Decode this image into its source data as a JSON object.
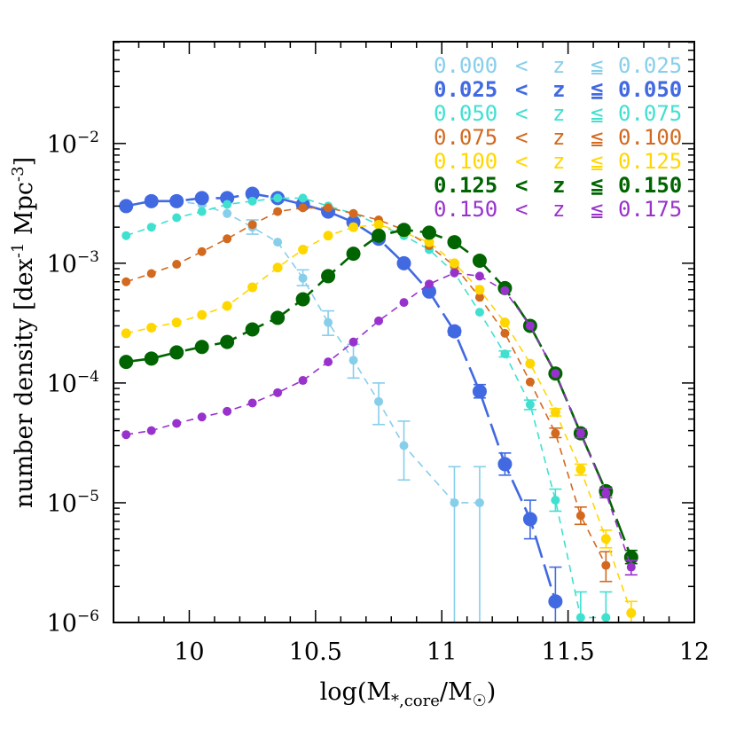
{
  "chart_data": {
    "type": "line",
    "title": "",
    "xlabel": "log(M",
    "xlabel_sub": "*,core",
    "xlabel_tail": "/M",
    "xlabel_sun": "☉",
    "xlabel_close": ")",
    "ylabel": "number density [dex",
    "ylabel_sup1": "-1",
    "ylabel_mid": " Mpc",
    "ylabel_sup2": "-3",
    "ylabel_close": "]",
    "xlim": [
      9.7,
      12.0
    ],
    "ylim_log10": [
      -6,
      -1.15
    ],
    "yscale": "log",
    "x_ticks": [
      {
        "value": 10,
        "label": "10"
      },
      {
        "value": 10.5,
        "label": "10.5"
      },
      {
        "value": 11,
        "label": "11"
      },
      {
        "value": 11.5,
        "label": "11.5"
      },
      {
        "value": 12,
        "label": "12"
      }
    ],
    "y_ticks": [
      {
        "value": -2,
        "base": "10",
        "exp": "−2"
      },
      {
        "value": -3,
        "base": "10",
        "exp": "−3"
      },
      {
        "value": -4,
        "base": "10",
        "exp": "−4"
      },
      {
        "value": -5,
        "base": "10",
        "exp": "−5"
      },
      {
        "value": -6,
        "base": "10",
        "exp": "−6"
      }
    ],
    "legend_position": "top-right",
    "series": [
      {
        "name": "0.000 < z ≦ 0.025",
        "lo": "0.000",
        "hi": "0.025",
        "color": "#87ceeb",
        "dash": "8,6",
        "width": 1.6,
        "marker_r": 5,
        "points": [
          {
            "x": 9.75,
            "y": 0.003
          },
          {
            "x": 9.85,
            "y": 0.0033
          },
          {
            "x": 9.95,
            "y": 0.0033
          },
          {
            "x": 10.05,
            "y": 0.0031
          },
          {
            "x": 10.15,
            "y": 0.0026
          },
          {
            "x": 10.25,
            "y": 0.002,
            "err": [
              0.00175,
              0.0023
            ]
          },
          {
            "x": 10.35,
            "y": 0.0015
          },
          {
            "x": 10.45,
            "y": 0.00075,
            "err": [
              0.00065,
              0.00088
            ]
          },
          {
            "x": 10.55,
            "y": 0.00032,
            "err": [
              0.00025,
              0.0004
            ]
          },
          {
            "x": 10.65,
            "y": 0.000155,
            "err": [
              0.00011,
              0.00021
            ]
          },
          {
            "x": 10.75,
            "y": 7e-05,
            "err": [
              4.5e-05,
              0.0001
            ]
          },
          {
            "x": 10.85,
            "y": 3e-05,
            "err": [
              1.55e-05,
              4.8e-05
            ]
          },
          {
            "x": 11.05,
            "y": 1e-05,
            "err": [
              1e-06,
              2e-05
            ]
          },
          {
            "x": 11.15,
            "y": 1e-05,
            "err": [
              1e-06,
              2e-05
            ]
          }
        ]
      },
      {
        "name": "0.025 < z ≦ 0.050",
        "lo": "0.025",
        "hi": "0.050",
        "color": "#4169e1",
        "dash": "26,8",
        "width": 2.6,
        "marker_r": 8,
        "points": [
          {
            "x": 9.75,
            "y": 0.003
          },
          {
            "x": 9.85,
            "y": 0.0033
          },
          {
            "x": 9.95,
            "y": 0.0033
          },
          {
            "x": 10.05,
            "y": 0.0035
          },
          {
            "x": 10.15,
            "y": 0.0035
          },
          {
            "x": 10.25,
            "y": 0.0038
          },
          {
            "x": 10.35,
            "y": 0.0035
          },
          {
            "x": 10.45,
            "y": 0.0031
          },
          {
            "x": 10.55,
            "y": 0.0027
          },
          {
            "x": 10.65,
            "y": 0.0022
          },
          {
            "x": 10.75,
            "y": 0.0016
          },
          {
            "x": 10.85,
            "y": 0.001
          },
          {
            "x": 10.95,
            "y": 0.00058
          },
          {
            "x": 11.05,
            "y": 0.00027,
            "err": [
              0.00025,
              0.00029
            ]
          },
          {
            "x": 11.15,
            "y": 8.5e-05,
            "err": [
              7.5e-05,
              9.7e-05
            ]
          },
          {
            "x": 11.25,
            "y": 2.1e-05,
            "err": [
              1.7e-05,
              2.6e-05
            ]
          },
          {
            "x": 11.35,
            "y": 7.3e-06,
            "err": [
              5e-06,
              1.05e-05
            ]
          },
          {
            "x": 11.45,
            "y": 1.5e-06,
            "err": [
              8e-07,
              2.9e-06
            ]
          }
        ]
      },
      {
        "name": "0.050 < z ≦ 0.075",
        "lo": "0.050",
        "hi": "0.075",
        "color": "#40e0d0",
        "dash": "8,6",
        "width": 1.6,
        "marker_r": 5,
        "points": [
          {
            "x": 9.75,
            "y": 0.0017
          },
          {
            "x": 9.85,
            "y": 0.002
          },
          {
            "x": 9.95,
            "y": 0.0024
          },
          {
            "x": 10.05,
            "y": 0.0027
          },
          {
            "x": 10.15,
            "y": 0.0031
          },
          {
            "x": 10.25,
            "y": 0.0033
          },
          {
            "x": 10.35,
            "y": 0.0035
          },
          {
            "x": 10.45,
            "y": 0.0035
          },
          {
            "x": 10.55,
            "y": 0.003
          },
          {
            "x": 10.65,
            "y": 0.0026
          },
          {
            "x": 10.75,
            "y": 0.0021
          },
          {
            "x": 10.85,
            "y": 0.0017
          },
          {
            "x": 10.95,
            "y": 0.0013
          },
          {
            "x": 11.05,
            "y": 0.00083
          },
          {
            "x": 11.15,
            "y": 0.00039
          },
          {
            "x": 11.25,
            "y": 0.000175,
            "err": [
              0.000165,
              0.000185
            ]
          },
          {
            "x": 11.35,
            "y": 6.6e-05,
            "err": [
              6e-05,
              7.2e-05
            ]
          },
          {
            "x": 11.45,
            "y": 1.05e-05,
            "err": [
              8.5e-06,
              1.3e-05
            ]
          },
          {
            "x": 11.55,
            "y": 1.1e-06,
            "err": [
              6e-07,
              1.8e-06
            ]
          },
          {
            "x": 11.65,
            "y": 1.1e-06,
            "err": [
              6e-07,
              1.8e-06
            ]
          }
        ]
      },
      {
        "name": "0.075 < z ≦ 0.100",
        "lo": "0.075",
        "hi": "0.100",
        "color": "#d2691e",
        "dash": "8,6",
        "width": 1.6,
        "marker_r": 5,
        "points": [
          {
            "x": 9.75,
            "y": 0.0007
          },
          {
            "x": 9.85,
            "y": 0.00082
          },
          {
            "x": 9.95,
            "y": 0.00098
          },
          {
            "x": 10.05,
            "y": 0.00125
          },
          {
            "x": 10.15,
            "y": 0.0016
          },
          {
            "x": 10.25,
            "y": 0.0021
          },
          {
            "x": 10.35,
            "y": 0.0027
          },
          {
            "x": 10.45,
            "y": 0.0029
          },
          {
            "x": 10.55,
            "y": 0.0029
          },
          {
            "x": 10.65,
            "y": 0.0026
          },
          {
            "x": 10.75,
            "y": 0.0023
          },
          {
            "x": 10.85,
            "y": 0.0019
          },
          {
            "x": 10.95,
            "y": 0.0014
          },
          {
            "x": 11.05,
            "y": 0.00095
          },
          {
            "x": 11.15,
            "y": 0.00052
          },
          {
            "x": 11.25,
            "y": 0.00026
          },
          {
            "x": 11.35,
            "y": 0.000102
          },
          {
            "x": 11.45,
            "y": 3.8e-05,
            "err": [
              3.5e-05,
              4.2e-05
            ]
          },
          {
            "x": 11.55,
            "y": 7.8e-06,
            "err": [
              6.6e-06,
              9.2e-06
            ]
          },
          {
            "x": 11.65,
            "y": 3e-06,
            "err": [
              2.2e-06,
              3.9e-06
            ]
          }
        ]
      },
      {
        "name": "0.100 < z ≦ 0.125",
        "lo": "0.100",
        "hi": "0.125",
        "color": "#ffd700",
        "dash": "8,6",
        "width": 1.6,
        "marker_r": 5.5,
        "points": [
          {
            "x": 9.75,
            "y": 0.00026
          },
          {
            "x": 9.85,
            "y": 0.00029
          },
          {
            "x": 9.95,
            "y": 0.00032
          },
          {
            "x": 10.05,
            "y": 0.00037
          },
          {
            "x": 10.15,
            "y": 0.00044
          },
          {
            "x": 10.25,
            "y": 0.00063
          },
          {
            "x": 10.35,
            "y": 0.00092
          },
          {
            "x": 10.45,
            "y": 0.0013
          },
          {
            "x": 10.55,
            "y": 0.0017
          },
          {
            "x": 10.65,
            "y": 0.002
          },
          {
            "x": 10.75,
            "y": 0.0021
          },
          {
            "x": 10.85,
            "y": 0.0018
          },
          {
            "x": 10.95,
            "y": 0.0015
          },
          {
            "x": 11.05,
            "y": 0.001
          },
          {
            "x": 11.15,
            "y": 0.0006
          },
          {
            "x": 11.25,
            "y": 0.00032
          },
          {
            "x": 11.35,
            "y": 0.000145
          },
          {
            "x": 11.45,
            "y": 5.7e-05,
            "err": [
              5.3e-05,
              6.1e-05
            ]
          },
          {
            "x": 11.55,
            "y": 1.9e-05,
            "err": [
              1.7e-05,
              2.1e-05
            ]
          },
          {
            "x": 11.65,
            "y": 5e-06,
            "err": [
              4.2e-06,
              5.9e-06
            ]
          },
          {
            "x": 11.75,
            "y": 1.2e-06,
            "err": [
              1e-06,
              1.5e-06
            ]
          }
        ]
      },
      {
        "name": "0.125 < z ≦ 0.150",
        "lo": "0.125",
        "hi": "0.150",
        "color": "#006400",
        "dash": "26,8",
        "width": 2.6,
        "marker_r": 8,
        "points": [
          {
            "x": 9.75,
            "y": 0.00015
          },
          {
            "x": 9.85,
            "y": 0.00016
          },
          {
            "x": 9.95,
            "y": 0.00018
          },
          {
            "x": 10.05,
            "y": 0.0002
          },
          {
            "x": 10.15,
            "y": 0.00022
          },
          {
            "x": 10.25,
            "y": 0.00028
          },
          {
            "x": 10.35,
            "y": 0.00035
          },
          {
            "x": 10.45,
            "y": 0.0005
          },
          {
            "x": 10.55,
            "y": 0.00078
          },
          {
            "x": 10.65,
            "y": 0.0012
          },
          {
            "x": 10.75,
            "y": 0.0017
          },
          {
            "x": 10.85,
            "y": 0.0019
          },
          {
            "x": 10.95,
            "y": 0.0018
          },
          {
            "x": 11.05,
            "y": 0.0015
          },
          {
            "x": 11.15,
            "y": 0.00105
          },
          {
            "x": 11.25,
            "y": 0.00062
          },
          {
            "x": 11.35,
            "y": 0.0003
          },
          {
            "x": 11.45,
            "y": 0.00012,
            "err": [
              0.000115,
              0.000126
            ]
          },
          {
            "x": 11.55,
            "y": 3.8e-05,
            "err": [
              3.6e-05,
              4e-05
            ]
          },
          {
            "x": 11.65,
            "y": 1.25e-05,
            "err": [
              1.15e-05,
              1.35e-05
            ]
          },
          {
            "x": 11.75,
            "y": 3.5e-06,
            "err": [
              3.1e-06,
              4e-06
            ]
          }
        ]
      },
      {
        "name": "0.150 < z ≦ 0.175",
        "lo": "0.150",
        "hi": "0.175",
        "color": "#9932cc",
        "dash": "8,6",
        "width": 1.6,
        "marker_r": 5,
        "points": [
          {
            "x": 9.75,
            "y": 3.7e-05
          },
          {
            "x": 9.85,
            "y": 4e-05
          },
          {
            "x": 9.95,
            "y": 4.6e-05
          },
          {
            "x": 10.05,
            "y": 5.2e-05
          },
          {
            "x": 10.15,
            "y": 5.8e-05
          },
          {
            "x": 10.25,
            "y": 6.8e-05
          },
          {
            "x": 10.35,
            "y": 8.3e-05
          },
          {
            "x": 10.45,
            "y": 0.000105
          },
          {
            "x": 10.55,
            "y": 0.00015
          },
          {
            "x": 10.65,
            "y": 0.00022
          },
          {
            "x": 10.75,
            "y": 0.00033
          },
          {
            "x": 10.85,
            "y": 0.00047
          },
          {
            "x": 10.95,
            "y": 0.00067
          },
          {
            "x": 11.05,
            "y": 0.00083
          },
          {
            "x": 11.15,
            "y": 0.00078
          },
          {
            "x": 11.25,
            "y": 0.00059
          },
          {
            "x": 11.35,
            "y": 0.0003
          },
          {
            "x": 11.45,
            "y": 0.00012
          },
          {
            "x": 11.55,
            "y": 3.8e-05,
            "err": [
              3.5e-05,
              4.1e-05
            ]
          },
          {
            "x": 11.65,
            "y": 1.2e-05,
            "err": [
              1.1e-05,
              1.32e-05
            ]
          },
          {
            "x": 11.75,
            "y": 2.9e-06,
            "err": [
              2.5e-06,
              3.3e-06
            ]
          }
        ]
      }
    ]
  }
}
